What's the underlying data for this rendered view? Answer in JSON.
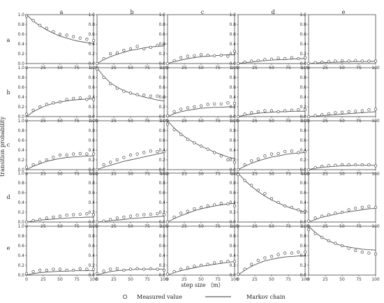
{
  "chart_data": {
    "type": "scatter",
    "layout": "5x5 small multiples",
    "col_labels": [
      "a",
      "b",
      "c",
      "d",
      "e"
    ],
    "row_labels": [
      "a",
      "b",
      "c",
      "d",
      "e"
    ],
    "xlabel": "step size （m）",
    "ylabel": "transition probability",
    "xlim": [
      0,
      100
    ],
    "ylim": [
      0,
      1.0
    ],
    "x_ticks": [
      0,
      25,
      50,
      75,
      100
    ],
    "y_ticks": [
      0.0,
      0.2,
      0.4,
      0.6,
      0.8,
      1.0
    ],
    "x_tick_labels": [
      "0",
      "25",
      "50",
      "75",
      "100"
    ],
    "y_tick_labels": [
      "0.0",
      "0.2",
      "0.4",
      "0.6",
      "0.8",
      "1.0"
    ],
    "x": [
      0,
      10,
      20,
      30,
      40,
      50,
      60,
      70,
      80,
      90,
      100
    ],
    "legend": {
      "measured": "Measured value",
      "markov": "Markov chain",
      "placement": "bottom-center"
    },
    "panels": [
      [
        {
          "row": "a",
          "col": "a",
          "measured": [
            0.97,
            0.88,
            0.78,
            0.72,
            0.65,
            0.6,
            0.58,
            0.55,
            0.52,
            0.5,
            0.47
          ],
          "markov": [
            1.0,
            0.87,
            0.77,
            0.69,
            0.62,
            0.56,
            0.52,
            0.48,
            0.45,
            0.43,
            0.41
          ]
        },
        {
          "row": "a",
          "col": "b",
          "measured": [
            0.0,
            0.1,
            0.2,
            0.22,
            0.27,
            0.3,
            0.35,
            0.3,
            0.33,
            0.37,
            0.4
          ],
          "markov": [
            0.0,
            0.08,
            0.14,
            0.19,
            0.23,
            0.27,
            0.29,
            0.32,
            0.34,
            0.35,
            0.36
          ]
        },
        {
          "row": "a",
          "col": "c",
          "measured": [
            0.0,
            0.06,
            0.12,
            0.15,
            0.16,
            0.18,
            0.17,
            0.16,
            0.17,
            0.15,
            0.25
          ],
          "markov": [
            0.0,
            0.04,
            0.07,
            0.1,
            0.12,
            0.14,
            0.15,
            0.16,
            0.17,
            0.18,
            0.18
          ]
        },
        {
          "row": "a",
          "col": "d",
          "measured": [
            0.0,
            0.03,
            0.05,
            0.06,
            0.08,
            0.09,
            0.11,
            0.1,
            0.12,
            0.1,
            0.12
          ],
          "markov": [
            0.0,
            0.02,
            0.03,
            0.05,
            0.06,
            0.07,
            0.08,
            0.08,
            0.09,
            0.1,
            0.1
          ]
        },
        {
          "row": "a",
          "col": "e",
          "measured": [
            0.0,
            0.02,
            0.03,
            0.04,
            0.05,
            0.06,
            0.05,
            0.06,
            0.05,
            0.05,
            0.05
          ],
          "markov": [
            0.0,
            0.01,
            0.02,
            0.02,
            0.03,
            0.03,
            0.04,
            0.04,
            0.04,
            0.04,
            0.05
          ]
        }
      ],
      [
        {
          "row": "b",
          "col": "a",
          "measured": [
            0.05,
            0.13,
            0.2,
            0.25,
            0.28,
            0.3,
            0.35,
            0.37,
            0.38,
            0.35,
            0.35
          ],
          "markov": [
            0.0,
            0.1,
            0.17,
            0.23,
            0.27,
            0.3,
            0.32,
            0.34,
            0.35,
            0.36,
            0.36
          ]
        },
        {
          "row": "b",
          "col": "b",
          "measured": [
            0.97,
            0.8,
            0.67,
            0.58,
            0.52,
            0.48,
            0.45,
            0.44,
            0.42,
            0.42,
            0.4
          ],
          "markov": [
            1.0,
            0.82,
            0.69,
            0.6,
            0.53,
            0.48,
            0.44,
            0.4,
            0.37,
            0.34,
            0.32
          ]
        },
        {
          "row": "b",
          "col": "c",
          "measured": [
            0.02,
            0.1,
            0.15,
            0.18,
            0.2,
            0.22,
            0.25,
            0.26,
            0.26,
            0.28,
            0.27
          ],
          "markov": [
            0.0,
            0.06,
            0.1,
            0.13,
            0.15,
            0.17,
            0.18,
            0.19,
            0.19,
            0.2,
            0.2
          ]
        },
        {
          "row": "b",
          "col": "d",
          "measured": [
            0.0,
            0.05,
            0.08,
            0.1,
            0.12,
            0.12,
            0.1,
            0.12,
            0.13,
            0.14,
            0.14
          ],
          "markov": [
            0.0,
            0.03,
            0.05,
            0.07,
            0.08,
            0.09,
            0.1,
            0.1,
            0.11,
            0.11,
            0.11
          ]
        },
        {
          "row": "b",
          "col": "e",
          "measured": [
            0.0,
            0.02,
            0.04,
            0.06,
            0.08,
            0.09,
            0.1,
            0.11,
            0.12,
            0.14,
            0.15
          ],
          "markov": [
            0.0,
            0.01,
            0.02,
            0.03,
            0.04,
            0.05,
            0.06,
            0.07,
            0.08,
            0.09,
            0.1
          ]
        }
      ],
      [
        {
          "row": "c",
          "col": "a",
          "measured": [
            0.05,
            0.1,
            0.15,
            0.2,
            0.25,
            0.3,
            0.3,
            0.32,
            0.33,
            0.32,
            0.32
          ],
          "markov": [
            0.0,
            0.07,
            0.12,
            0.17,
            0.2,
            0.23,
            0.25,
            0.26,
            0.27,
            0.28,
            0.28
          ]
        },
        {
          "row": "c",
          "col": "b",
          "measured": [
            0.0,
            0.1,
            0.15,
            0.2,
            0.25,
            0.3,
            0.32,
            0.35,
            0.38,
            0.37,
            0.37
          ],
          "markov": [
            0.0,
            0.05,
            0.09,
            0.13,
            0.17,
            0.2,
            0.23,
            0.26,
            0.29,
            0.32,
            0.35
          ]
        },
        {
          "row": "c",
          "col": "c",
          "measured": [
            0.93,
            0.82,
            0.72,
            0.62,
            0.55,
            0.48,
            0.42,
            0.35,
            0.28,
            0.2,
            0.15
          ],
          "markov": [
            1.0,
            0.85,
            0.73,
            0.63,
            0.55,
            0.48,
            0.42,
            0.36,
            0.31,
            0.26,
            0.22
          ]
        },
        {
          "row": "c",
          "col": "d",
          "measured": [
            0.0,
            0.1,
            0.18,
            0.22,
            0.28,
            0.32,
            0.33,
            0.37,
            0.38,
            0.35,
            0.37
          ],
          "markov": [
            0.0,
            0.07,
            0.13,
            0.18,
            0.22,
            0.26,
            0.28,
            0.31,
            0.33,
            0.34,
            0.35
          ]
        },
        {
          "row": "c",
          "col": "e",
          "measured": [
            0.0,
            0.04,
            0.07,
            0.08,
            0.09,
            0.1,
            0.1,
            0.1,
            0.1,
            0.1,
            0.08
          ],
          "markov": [
            0.0,
            0.03,
            0.05,
            0.06,
            0.07,
            0.08,
            0.08,
            0.09,
            0.09,
            0.09,
            0.09
          ]
        }
      ],
      [
        {
          "row": "d",
          "col": "a",
          "measured": [
            0.0,
            0.03,
            0.05,
            0.08,
            0.1,
            0.12,
            0.14,
            0.15,
            0.16,
            0.17,
            0.15
          ],
          "markov": [
            0.0,
            0.02,
            0.04,
            0.05,
            0.06,
            0.07,
            0.08,
            0.09,
            0.09,
            0.1,
            0.1
          ]
        },
        {
          "row": "d",
          "col": "b",
          "measured": [
            0.0,
            0.02,
            0.05,
            0.08,
            0.1,
            0.12,
            0.14,
            0.15,
            0.16,
            0.17,
            0.15
          ],
          "markov": [
            0.0,
            0.01,
            0.03,
            0.04,
            0.05,
            0.07,
            0.08,
            0.09,
            0.1,
            0.11,
            0.12
          ]
        },
        {
          "row": "d",
          "col": "c",
          "measured": [
            0.0,
            0.1,
            0.18,
            0.22,
            0.27,
            0.3,
            0.33,
            0.35,
            0.38,
            0.37,
            0.33
          ],
          "markov": [
            0.0,
            0.07,
            0.13,
            0.18,
            0.23,
            0.27,
            0.3,
            0.33,
            0.35,
            0.37,
            0.38
          ]
        },
        {
          "row": "d",
          "col": "d",
          "measured": [
            0.97,
            0.85,
            0.75,
            0.65,
            0.58,
            0.48,
            0.4,
            0.33,
            0.3,
            0.25,
            0.22
          ],
          "markov": [
            1.0,
            0.85,
            0.73,
            0.62,
            0.53,
            0.45,
            0.39,
            0.33,
            0.28,
            0.24,
            0.2
          ]
        },
        {
          "row": "d",
          "col": "e",
          "measured": [
            0.02,
            0.08,
            0.12,
            0.15,
            0.18,
            0.2,
            0.25,
            0.28,
            0.3,
            0.32,
            0.3
          ],
          "markov": [
            0.0,
            0.05,
            0.1,
            0.13,
            0.16,
            0.19,
            0.21,
            0.23,
            0.25,
            0.27,
            0.28
          ]
        }
      ],
      [
        {
          "row": "e",
          "col": "a",
          "measured": [
            0.03,
            0.07,
            0.1,
            0.1,
            0.12,
            0.12,
            0.1,
            0.1,
            0.13,
            0.12,
            0.12
          ],
          "markov": [
            0.0,
            0.03,
            0.05,
            0.06,
            0.07,
            0.08,
            0.08,
            0.09,
            0.09,
            0.09,
            0.09
          ]
        },
        {
          "row": "e",
          "col": "b",
          "measured": [
            0.03,
            0.08,
            0.12,
            0.13,
            0.1,
            0.12,
            0.13,
            0.12,
            0.13,
            0.12,
            0.1
          ],
          "markov": [
            0.0,
            0.04,
            0.07,
            0.09,
            0.1,
            0.11,
            0.12,
            0.12,
            0.12,
            0.12,
            0.12
          ]
        },
        {
          "row": "e",
          "col": "c",
          "measured": [
            0.02,
            0.07,
            0.12,
            0.15,
            0.18,
            0.2,
            0.22,
            0.25,
            0.27,
            0.28,
            0.28
          ],
          "markov": [
            0.0,
            0.05,
            0.09,
            0.12,
            0.15,
            0.18,
            0.2,
            0.22,
            0.24,
            0.26,
            0.28
          ]
        },
        {
          "row": "e",
          "col": "d",
          "measured": [
            0.02,
            0.12,
            0.22,
            0.3,
            0.35,
            0.38,
            0.42,
            0.45,
            0.45,
            0.47,
            0.47
          ],
          "markov": [
            0.0,
            0.1,
            0.18,
            0.24,
            0.29,
            0.32,
            0.35,
            0.37,
            0.38,
            0.39,
            0.4
          ]
        },
        {
          "row": "e",
          "col": "e",
          "measured": [
            0.93,
            0.85,
            0.77,
            0.7,
            0.65,
            0.6,
            0.55,
            0.5,
            0.47,
            0.45,
            0.43
          ],
          "markov": [
            1.0,
            0.87,
            0.77,
            0.7,
            0.64,
            0.6,
            0.57,
            0.55,
            0.53,
            0.52,
            0.51
          ]
        }
      ]
    ]
  }
}
